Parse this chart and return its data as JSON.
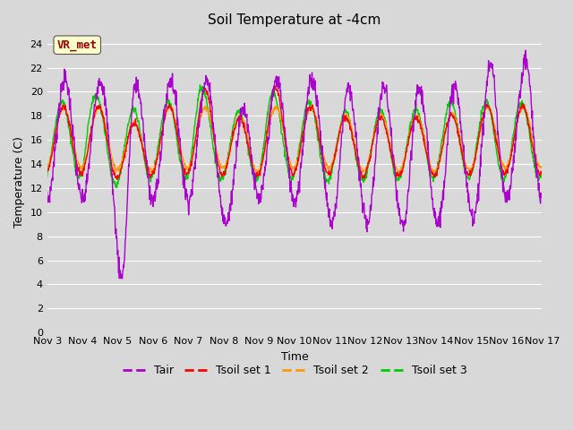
{
  "title": "Soil Temperature at -4cm",
  "xlabel": "Time",
  "ylabel": "Temperature (C)",
  "ylim": [
    0,
    25
  ],
  "yticks": [
    0,
    2,
    4,
    6,
    8,
    10,
    12,
    14,
    16,
    18,
    20,
    22,
    24
  ],
  "xtick_labels": [
    "Nov 3",
    "Nov 4",
    "Nov 5",
    "Nov 6",
    "Nov 7",
    "Nov 8",
    "Nov 9",
    "Nov 10",
    "Nov 11",
    "Nov 12",
    "Nov 13",
    "Nov 14",
    "Nov 15",
    "Nov 16",
    "Nov 17"
  ],
  "legend_labels": [
    "Tair",
    "Tsoil set 1",
    "Tsoil set 2",
    "Tsoil set 3"
  ],
  "line_colors": [
    "#aa00cc",
    "#ff0000",
    "#ff9900",
    "#00cc00"
  ],
  "annotation_text": "VR_met",
  "annotation_color": "#990000",
  "annotation_bg": "#ffffcc",
  "fig_bg_color": "#d8d8d8",
  "plot_bg_color": "#d8d8d8",
  "grid_color": "#ffffff",
  "title_fontsize": 11,
  "axis_fontsize": 9,
  "tick_fontsize": 8,
  "legend_fontsize": 9
}
